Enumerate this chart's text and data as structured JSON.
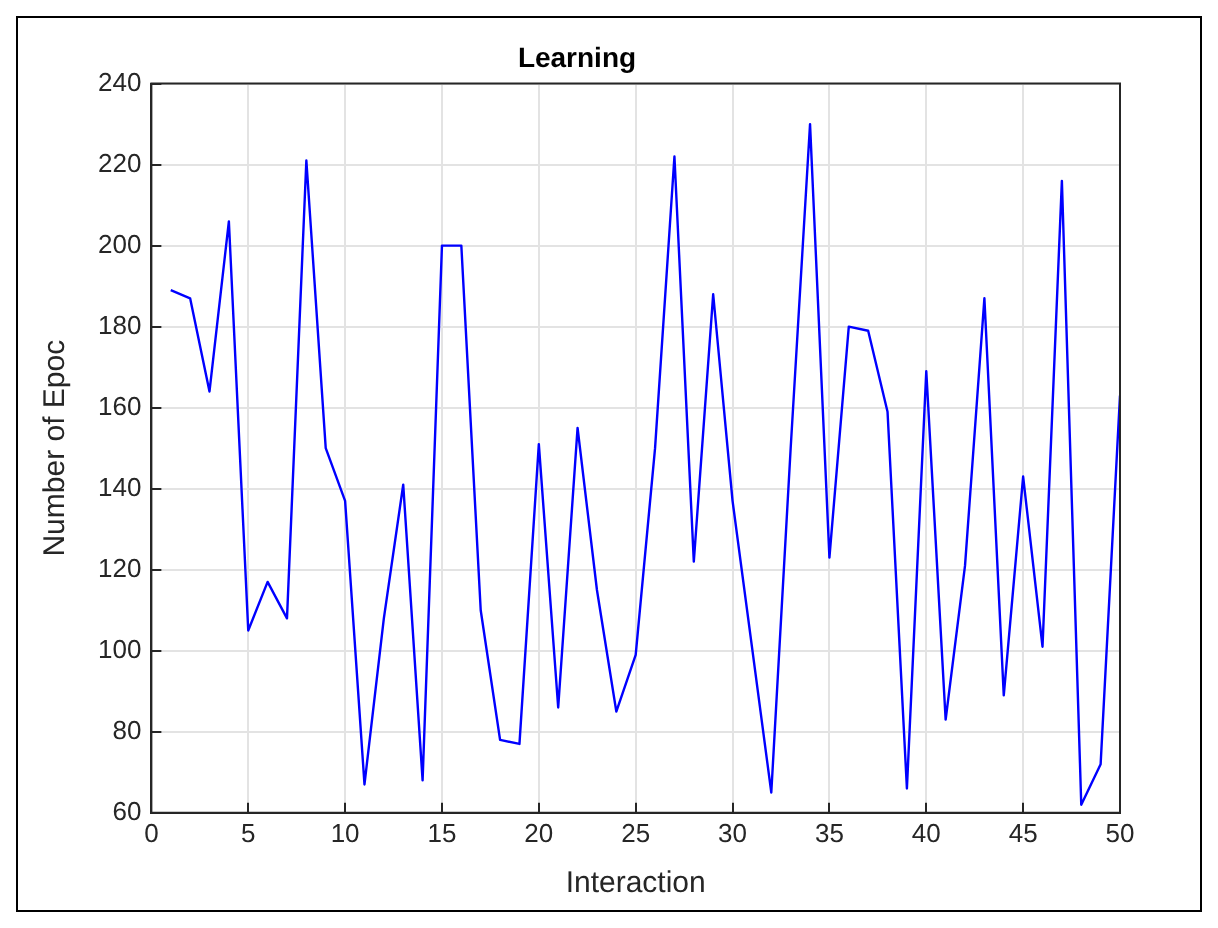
{
  "chart_data": {
    "type": "line",
    "title": "Learning",
    "xlabel": "Interaction",
    "ylabel": "Number of Epoc",
    "x": [
      1,
      2,
      3,
      4,
      5,
      6,
      7,
      8,
      9,
      10,
      11,
      12,
      13,
      14,
      15,
      16,
      17,
      18,
      19,
      20,
      21,
      22,
      23,
      24,
      25,
      26,
      27,
      28,
      29,
      30,
      31,
      32,
      33,
      34,
      35,
      36,
      37,
      38,
      39,
      40,
      41,
      42,
      43,
      44,
      45,
      46,
      47,
      48,
      49,
      50
    ],
    "series": [
      {
        "color": "#0000ff",
        "values": [
          189,
          187,
          164,
          206,
          105,
          117,
          108,
          221,
          150,
          137,
          67,
          108,
          141,
          68,
          200,
          200,
          110,
          78,
          77,
          151,
          86,
          155,
          115,
          85,
          99,
          150,
          222,
          122,
          188,
          137,
          101,
          65,
          150,
          230,
          123,
          180,
          179,
          159,
          66,
          169,
          83,
          121,
          187,
          89,
          143,
          101,
          216,
          62,
          72,
          163
        ]
      }
    ],
    "xlim": [
      0,
      50
    ],
    "xticks": [
      0,
      5,
      10,
      15,
      20,
      25,
      30,
      35,
      40,
      45,
      50
    ],
    "ylim": [
      60,
      240
    ],
    "yticks": [
      60,
      80,
      100,
      120,
      140,
      160,
      180,
      200,
      220,
      240
    ],
    "grid": true,
    "legend": false,
    "marker": "none",
    "line_style": "solid"
  }
}
